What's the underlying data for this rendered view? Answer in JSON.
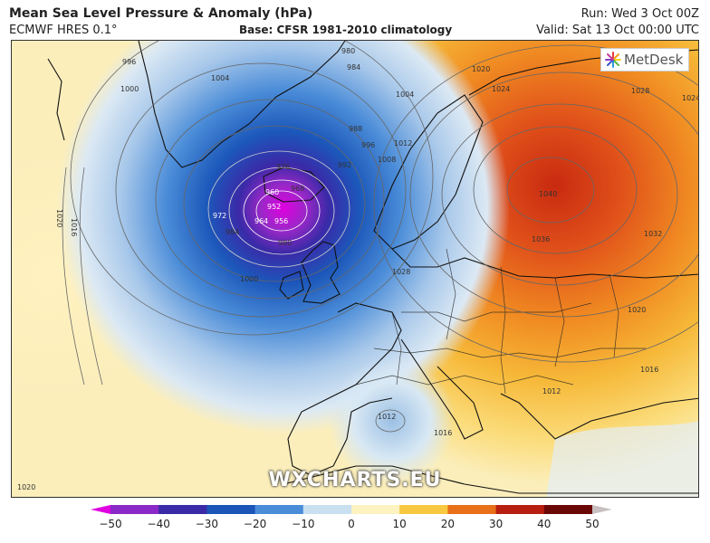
{
  "header": {
    "title": "Mean Sea Level Pressure & Anomaly (hPa)",
    "model": "ECMWF HRES 0.1°",
    "base": "Base: CFSR 1981-2010 climatology",
    "run": "Run: Wed 3 Oct 00Z",
    "valid": "Valid: Sat 13 Oct 00:00 UTC"
  },
  "branding": {
    "logo_text": "MetDesk",
    "watermark": "WXCHARTS.EU"
  },
  "isobars": {
    "labels": [
      "996",
      "980",
      "984",
      "1000",
      "1004",
      "1004",
      "1020",
      "1016",
      "976",
      "988",
      "992",
      "996",
      "968",
      "960",
      "952",
      "956",
      "972",
      "964",
      "984",
      "980",
      "1000",
      "1008",
      "1012",
      "1020",
      "1024",
      "1028",
      "1024",
      "1040",
      "1036",
      "1032",
      "1028",
      "1020",
      "1016",
      "1012",
      "1016",
      "1020",
      "1012"
    ]
  },
  "colorbar": {
    "ticks": [
      "−50",
      "−40",
      "−30",
      "−20",
      "−10",
      "0",
      "10",
      "20",
      "30",
      "40",
      "50"
    ],
    "colors": [
      "#e000e0",
      "#8a28c8",
      "#3a2aa8",
      "#1c55b8",
      "#4a8cd8",
      "#c8e0f0",
      "#fdf3c0",
      "#f8c840",
      "#e87018",
      "#b81e10",
      "#6a0808",
      "#c8c0c0"
    ]
  }
}
